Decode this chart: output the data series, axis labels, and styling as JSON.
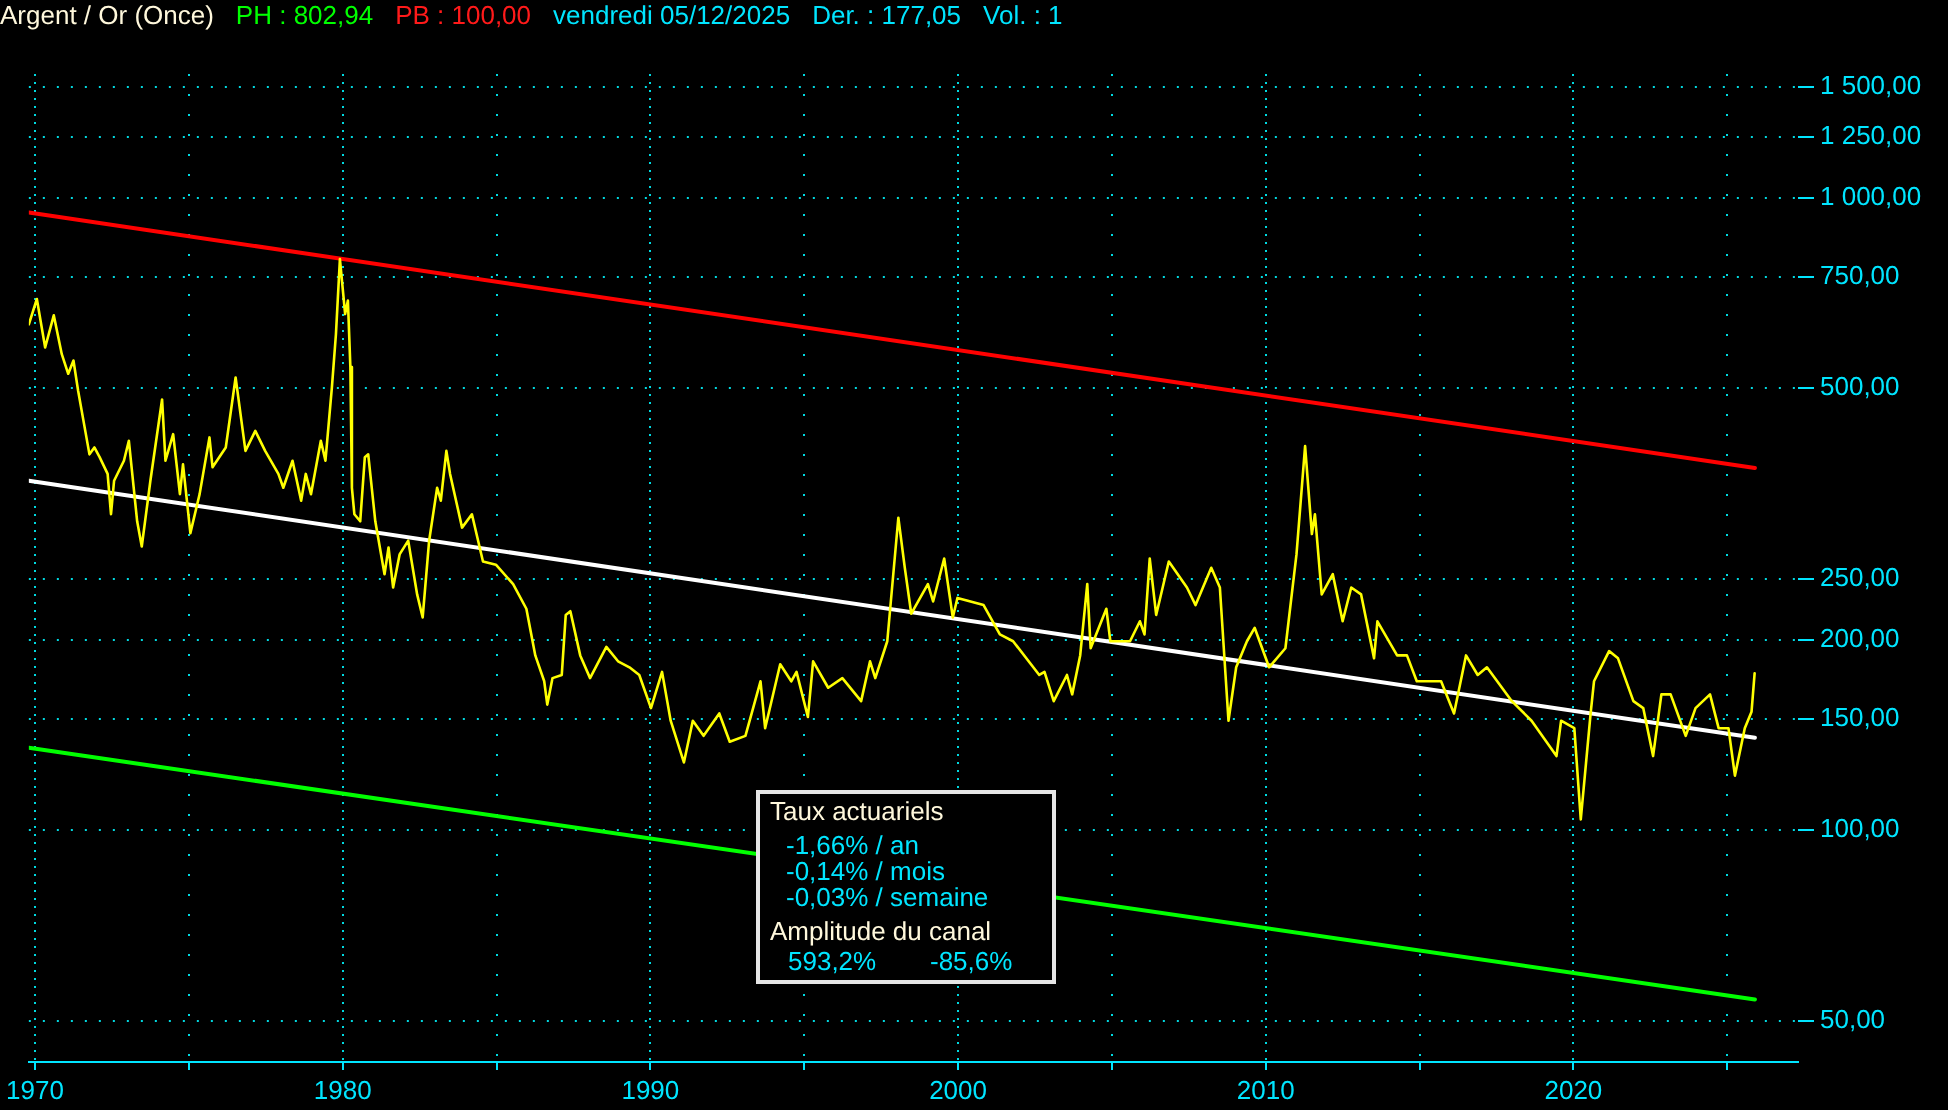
{
  "chart_data": {
    "type": "line",
    "title": "Argent / Or (Once)",
    "annotations": [
      "PH : 802,94",
      "PB : 100,00",
      "vendredi 05/12/2025",
      "Der. : 177,05",
      "Vol. : 1",
      "Taux actuariels",
      "-1,66% / an",
      "-0,14% / mois",
      "-0,03% / semaine",
      "Amplitude du canal",
      "593,2%",
      "-85,6%"
    ],
    "series": [
      {
        "color": "#ffff00",
        "x": [
          1969.8,
          1970.06,
          1970.33,
          1970.61,
          1970.87,
          1971.08,
          1971.25,
          1971.4,
          1971.77,
          1971.93,
          1972.1,
          1972.36,
          1972.47,
          1972.57,
          1972.89,
          1973.05,
          1973.32,
          1973.47,
          1973.75,
          1974.13,
          1974.24,
          1974.49,
          1974.71,
          1974.81,
          1975.05,
          1975.35,
          1975.67,
          1975.77,
          1976.2,
          1976.52,
          1976.84,
          1977.16,
          1977.48,
          1977.91,
          1978.07,
          1978.37,
          1978.65,
          1978.8,
          1978.97,
          1979.29,
          1979.44,
          1979.65,
          1979.78,
          1979.91,
          1980.08,
          1980.17,
          1980.25,
          1980.3,
          1980.38,
          1980.57,
          1980.72,
          1980.83,
          1981.06,
          1981.36,
          1981.49,
          1981.64,
          1981.85,
          1982.13,
          1982.42,
          1982.6,
          1982.81,
          1983.07,
          1983.19,
          1983.37,
          1983.49,
          1983.88,
          1984.2,
          1984.56,
          1984.98,
          1985.54,
          1985.97,
          1986.26,
          1986.55,
          1986.65,
          1986.82,
          1987.12,
          1987.25,
          1987.4,
          1987.72,
          1988.04,
          1988.57,
          1988.95,
          1989.32,
          1989.64,
          1990.02,
          1990.38,
          1990.66,
          1991.09,
          1991.38,
          1991.73,
          1992.24,
          1992.58,
          1993.09,
          1993.58,
          1993.73,
          1994.22,
          1994.58,
          1994.75,
          1995.12,
          1995.29,
          1995.78,
          1996.24,
          1996.85,
          1997.14,
          1997.31,
          1997.7,
          1998.06,
          1998.27,
          1998.48,
          1999.02,
          1999.19,
          1999.55,
          1999.83,
          1999.98,
          2000.83,
          2001.36,
          2001.79,
          2002.64,
          2002.81,
          2003.11,
          2003.54,
          2003.71,
          2003.97,
          2004.2,
          2004.31,
          2004.82,
          2004.95,
          2005.59,
          2005.91,
          2006.06,
          2006.23,
          2006.44,
          2006.85,
          2007.44,
          2007.72,
          2008.23,
          2008.51,
          2008.79,
          2009.04,
          2009.39,
          2009.64,
          2010.11,
          2010.64,
          2011.0,
          2011.28,
          2011.5,
          2011.6,
          2011.82,
          2012.18,
          2012.5,
          2012.78,
          2013.1,
          2013.52,
          2013.63,
          2014.27,
          2014.59,
          2014.91,
          2015.7,
          2016.12,
          2016.51,
          2016.89,
          2017.19,
          2018.0,
          2018.64,
          2019.45,
          2019.6,
          2020.03,
          2020.24,
          2020.56,
          2020.67,
          2021.16,
          2021.45,
          2021.95,
          2022.27,
          2022.59,
          2022.86,
          2023.16,
          2023.65,
          2023.97,
          2024.44,
          2024.72,
          2025.04,
          2025.25,
          2025.57,
          2025.79,
          2025.89
        ],
        "values": [
          631,
          692,
          580,
          652,
          566,
          527,
          553,
          496,
          393,
          403,
          389,
          366,
          316,
          357,
          384,
          413,
          308,
          281,
          357,
          480,
          384,
          423,
          340,
          379,
          295,
          340,
          418,
          375,
          403,
          520,
          398,
          428,
          398,
          366,
          348,
          384,
          332,
          366,
          340,
          413,
          384,
          502,
          608,
          800,
          655,
          688,
          540,
          348,
          316,
          308,
          389,
          393,
          308,
          254,
          280,
          242,
          273,
          287,
          236,
          217,
          287,
          348,
          332,
          398,
          366,
          301,
          316,
          266,
          263,
          245,
          224,
          189,
          172,
          158,
          174,
          176,
          219,
          222,
          189,
          174,
          195,
          185,
          181,
          176,
          156,
          178,
          149,
          128,
          149,
          141,
          153,
          138,
          141,
          172,
          145,
          183,
          172,
          178,
          151,
          185,
          168,
          174,
          160,
          185,
          174,
          199,
          312,
          260,
          220,
          245,
          230,
          269,
          217,
          233,
          227,
          204,
          199,
          176,
          178,
          160,
          176,
          164,
          189,
          245,
          194,
          224,
          199,
          199,
          214,
          204,
          269,
          219,
          266,
          242,
          227,
          260,
          242,
          149,
          181,
          199,
          209,
          181,
          194,
          273,
          405,
          294,
          316,
          236,
          254,
          214,
          242,
          236,
          187,
          214,
          189,
          189,
          172,
          172,
          153,
          189,
          176,
          181,
          160,
          149,
          131,
          149,
          145,
          104,
          153,
          172,
          192,
          187,
          160,
          156,
          131,
          164,
          164,
          141,
          156,
          164,
          145,
          145,
          122,
          145,
          154,
          177
        ]
      },
      {
        "color": "#ffffff",
        "x": [
          1969.8,
          2025.9
        ],
        "values": [
          357,
          140
        ]
      },
      {
        "color": "#ff0000",
        "x": [
          1969.8,
          2025.9
        ],
        "values": [
          948,
          374
        ]
      },
      {
        "color": "#00ff00",
        "x": [
          1969.8,
          2025.9
        ],
        "values": [
          135,
          54
        ]
      }
    ],
    "xlim": [
      1969.8,
      2027.3
    ],
    "xticks": [
      1970,
      {
        "value": 1975,
        "label": null
      },
      1980,
      {
        "value": 1985,
        "label": null
      },
      1990,
      {
        "value": 1995,
        "label": null
      },
      2000,
      {
        "value": 2005,
        "label": null
      },
      2010,
      {
        "value": 2015,
        "label": null
      },
      2020,
      {
        "value": 2025,
        "label": null
      }
    ],
    "ylim": [
      43,
      1570
    ],
    "yticks": [
      {
        "value": 50,
        "label": "50,00"
      },
      {
        "value": 100,
        "label": "100,00"
      },
      {
        "value": 150,
        "label": "150,00"
      },
      {
        "value": 200,
        "label": "200,00"
      },
      {
        "value": 250,
        "label": "250,00"
      },
      {
        "value": 500,
        "label": "500,00"
      },
      {
        "value": 750,
        "label": "750,00"
      },
      {
        "value": 1000,
        "label": "1 000,00"
      },
      {
        "value": 1250,
        "label": "1 250,00"
      },
      {
        "value": 1500,
        "label": "1 500,00"
      }
    ],
    "log": true,
    "grid": true,
    "legend": false,
    "marker": "none",
    "line_style": "solid"
  }
}
